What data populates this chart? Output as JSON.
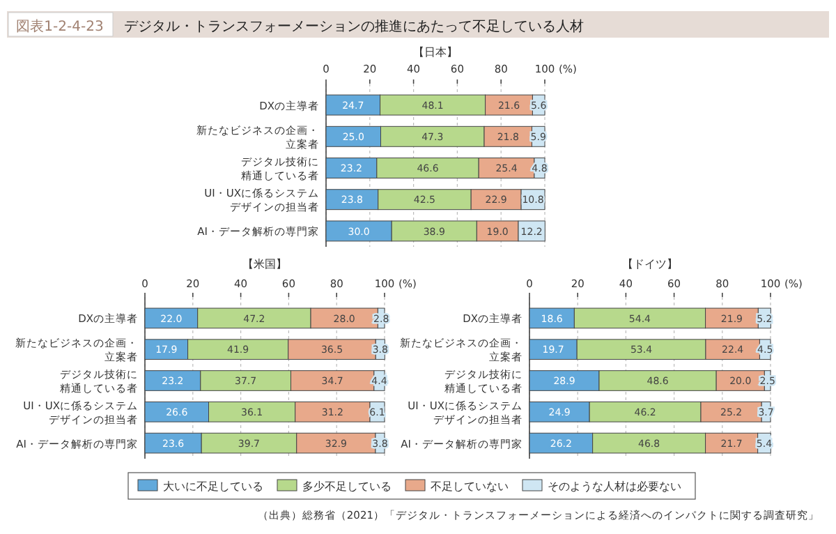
{
  "chart_data": [
    {
      "type": "bar",
      "orientation": "horizontal",
      "stacked": true,
      "title": "【日本】",
      "annotations": [
        "図表1-2-4-23",
        "デジタル・トランスフォーメーションの推進にあたって不足している人材"
      ],
      "categories": [
        "DXの主導者",
        "新たなビジネスの企画・立案者",
        "デジタル技術に精通している者",
        "UI・UXに係るシステムデザインの担当者",
        "AI・データ解析の専門家"
      ],
      "xlim": [
        0,
        100
      ],
      "xticks": [
        0,
        20,
        40,
        60,
        80,
        100
      ],
      "xlabel": "(%)",
      "grid": "x",
      "series": [
        {
          "color": "#62a9db",
          "values": [
            24.7,
            25.0,
            23.2,
            23.8,
            30.0
          ],
          "value_labels": [
            "24.7",
            "25.0",
            "23.2",
            "23.8",
            "30.0"
          ]
        },
        {
          "color": "#b7d98c",
          "values": [
            48.1,
            47.3,
            46.6,
            42.5,
            38.9
          ],
          "value_labels": [
            "48.1",
            "47.3",
            "46.6",
            "42.5",
            "38.9"
          ]
        },
        {
          "color": "#e8a98b",
          "values": [
            21.6,
            21.8,
            25.4,
            22.9,
            19.0
          ],
          "value_labels": [
            "21.6",
            "21.8",
            "25.4",
            "22.9",
            "19.0"
          ]
        },
        {
          "color": "#cfe6f3",
          "values": [
            5.6,
            5.9,
            4.8,
            10.8,
            12.2
          ],
          "value_labels": [
            "5.6",
            "5.9",
            "4.8",
            "10.8",
            "12.2"
          ]
        }
      ]
    },
    {
      "type": "bar",
      "orientation": "horizontal",
      "stacked": true,
      "title": "【米国】",
      "annotations": [
        "（出典）総務省（2021）「デジタル・トランスフォーメーションによる経済へのインパクトに関する調査研究」"
      ],
      "categories": [
        "DXの主導者",
        "新たなビジネスの企画・立案者",
        "デジタル技術に精通している者",
        "UI・UXに係るシステムデザインの担当者",
        "AI・データ解析の専門家"
      ],
      "xlim": [
        0,
        100
      ],
      "xticks": [
        0,
        20,
        40,
        60,
        80,
        100
      ],
      "xlabel": "(%)",
      "grid": "x",
      "legend": "bottom",
      "series": [
        {
          "name": "大いに不足している",
          "color": "#62a9db",
          "values": [
            22.0,
            17.9,
            23.2,
            26.6,
            23.6
          ],
          "value_labels": [
            "22.0",
            "17.9",
            "23.2",
            "26.6",
            "23.6"
          ]
        },
        {
          "name": "多少不足している",
          "color": "#b7d98c",
          "values": [
            47.2,
            41.9,
            37.7,
            36.1,
            39.7
          ],
          "value_labels": [
            "47.2",
            "41.9",
            "37.7",
            "36.1",
            "39.7"
          ]
        },
        {
          "name": "不足していない",
          "color": "#e8a98b",
          "values": [
            28.0,
            36.5,
            34.7,
            31.2,
            32.9
          ],
          "value_labels": [
            "28.0",
            "36.5",
            "34.7",
            "31.2",
            "32.9"
          ]
        },
        {
          "name": "そのような人材は必要ない",
          "color": "#cfe6f3",
          "values": [
            2.8,
            3.8,
            4.4,
            6.1,
            3.8
          ],
          "value_labels": [
            "2.8",
            "3.8",
            "4.4",
            "6.1",
            "3.8"
          ]
        }
      ]
    },
    {
      "type": "bar",
      "orientation": "horizontal",
      "stacked": true,
      "title": "【ドイツ】",
      "categories": [
        "DXの主導者",
        "新たなビジネスの企画・立案者",
        "デジタル技術に精通している者",
        "UI・UXに係るシステムデザインの担当者",
        "AI・データ解析の専門家"
      ],
      "xlim": [
        0,
        100
      ],
      "xticks": [
        0,
        20,
        40,
        60,
        80,
        100
      ],
      "xlabel": "(%)",
      "grid": "x",
      "series": [
        {
          "color": "#62a9db",
          "values": [
            18.6,
            19.7,
            28.9,
            24.9,
            26.2
          ],
          "value_labels": [
            "18.6",
            "19.7",
            "28.9",
            "24.9",
            "26.2"
          ]
        },
        {
          "color": "#b7d98c",
          "values": [
            54.4,
            53.4,
            48.6,
            46.2,
            46.8
          ],
          "value_labels": [
            "54.4",
            "53.4",
            "48.6",
            "46.2",
            "46.8"
          ]
        },
        {
          "color": "#e8a98b",
          "values": [
            21.9,
            22.4,
            20.0,
            25.2,
            21.7
          ],
          "value_labels": [
            "21.9",
            "22.4",
            "20.0",
            "25.2",
            "21.7"
          ]
        },
        {
          "color": "#cfe6f3",
          "values": [
            5.2,
            4.5,
            2.5,
            3.7,
            5.4
          ],
          "value_labels": [
            "5.2",
            "4.5",
            "2.5",
            "3.7",
            "5.4"
          ]
        }
      ]
    }
  ]
}
